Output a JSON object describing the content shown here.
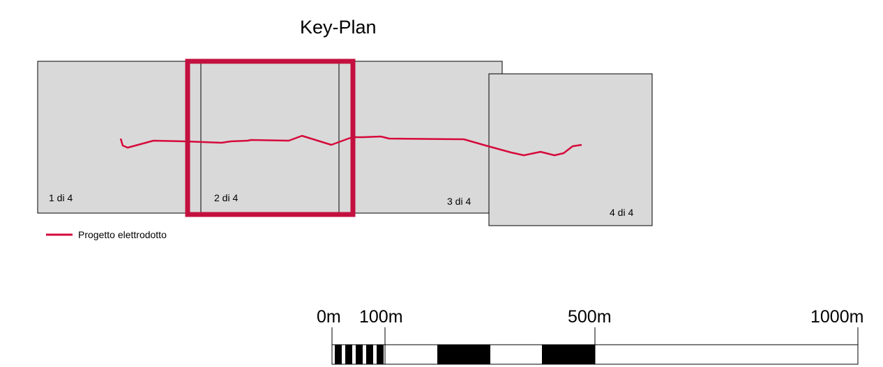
{
  "title": "Key-Plan",
  "sheets": [
    {
      "label": "1 di 4"
    },
    {
      "label": "2 di 4"
    },
    {
      "label": "3 di 4"
    },
    {
      "label": "4 di 4"
    }
  ],
  "legend": {
    "label": "Progetto elettrodotto",
    "color": "#d6093a"
  },
  "colors": {
    "sheet_fill": "#d9d9d9",
    "highlight": "#c3103f",
    "route": "#d6093a"
  },
  "current_sheet": "2 di 4",
  "scale_bar": {
    "labels": [
      "0m",
      "100m",
      "500m",
      "1000m"
    ]
  }
}
